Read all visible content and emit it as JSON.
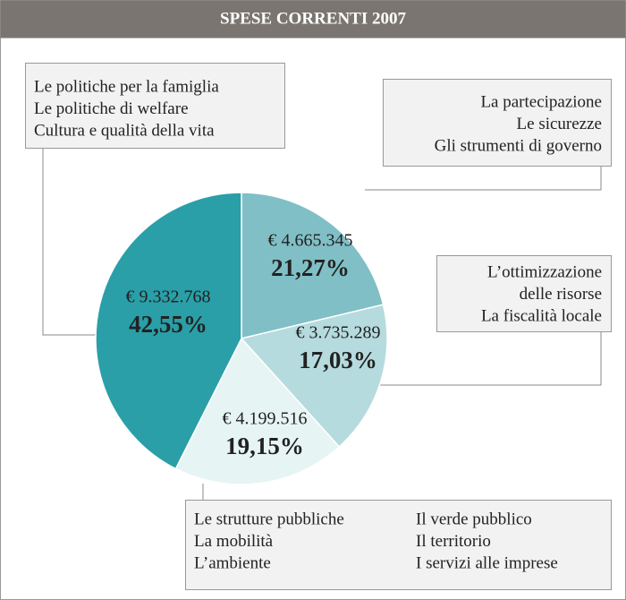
{
  "chart_data": {
    "type": "pie",
    "title": "SPESE CORRENTI 2007",
    "values": [
      21.27,
      17.03,
      19.15,
      42.55
    ],
    "value_labels": [
      "21,27%",
      "17,03%",
      "19,15%",
      "42,55%"
    ],
    "amounts": [
      4665345,
      3735289,
      4199516,
      9332768
    ],
    "amount_labels": [
      "€ 4.665.345",
      "€ 3.735.289",
      "€ 4.199.516",
      "€ 9.332.768"
    ],
    "colors": [
      "#80bfc6",
      "#b6dbde",
      "#e7f4f4",
      "#2a9fa7"
    ],
    "groups": [
      {
        "lines": [
          "La partecipazione",
          "Le sicurezze",
          "Gli strumenti di governo"
        ]
      },
      {
        "lines": [
          "L’ottimizzazione",
          "delle risorse",
          "La fiscalità locale"
        ]
      },
      {
        "lines": [
          "Le strutture pubbliche",
          "La mobilità",
          "L’ambiente",
          "Il verde pubblico",
          "Il territorio",
          "I servizi alle imprese"
        ]
      },
      {
        "lines": [
          "Le politiche per la famiglia",
          "Le politiche di welfare",
          "Cultura e qualità della vita"
        ]
      }
    ]
  }
}
